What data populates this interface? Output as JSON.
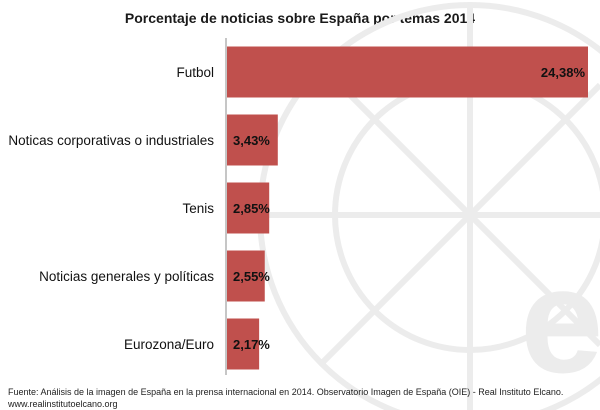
{
  "chart_data": {
    "type": "bar",
    "orientation": "horizontal",
    "title": "Porcentaje de noticias sobre España por temas 2014",
    "categories": [
      "Futbol",
      "Noticas corporativas o industriales",
      "Tenis",
      "Noticias generales y políticas",
      "Eurozona/Euro"
    ],
    "values": [
      24.38,
      3.43,
      2.85,
      2.55,
      2.17
    ],
    "value_labels": [
      "24,38%",
      "3,43%",
      "2,85%",
      "2,55%",
      "2,17%"
    ],
    "unit": "%",
    "xlabel": "",
    "ylabel": "",
    "xlim": [
      0,
      24.38
    ],
    "grid": false,
    "legend": "none",
    "bar_color": "#c0504d"
  },
  "source": {
    "line1": "Fuente: Análisis de la imagen de España en la prensa internacional en 2014. Observatorio Imagen de España (OIE) - Real Instituto Elcano.",
    "line2": "www.realinstitutoelcano.org"
  },
  "colors": {
    "bar": "#c0504d",
    "watermark": "#ececec"
  }
}
